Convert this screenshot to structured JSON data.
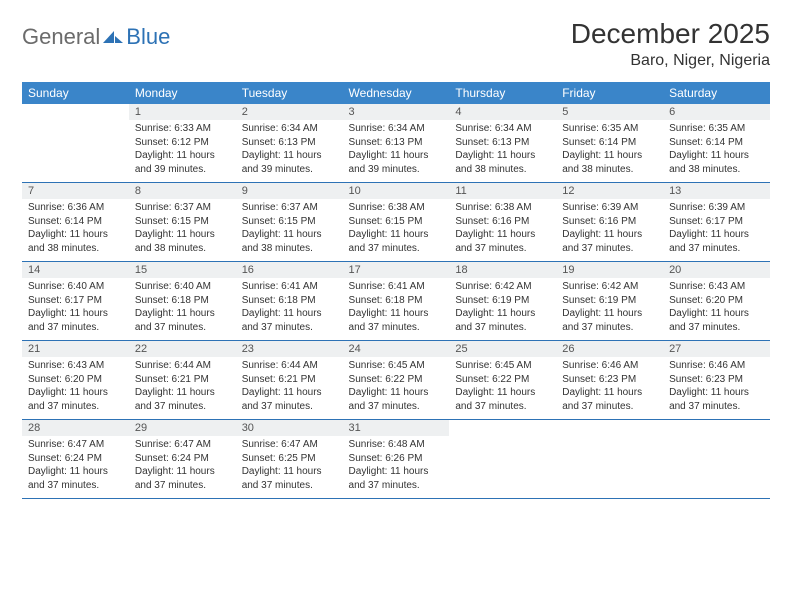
{
  "logo": {
    "general": "General",
    "blue": "Blue"
  },
  "title": "December 2025",
  "location": "Baro, Niger, Nigeria",
  "colors": {
    "header_bg": "#3a85c9",
    "header_text": "#ffffff",
    "daynum_bg": "#eef0f1",
    "border": "#2d72b5",
    "text": "#333333",
    "logo_gray": "#6b6b6b",
    "logo_blue": "#2d72b5"
  },
  "days_of_week": [
    "Sunday",
    "Monday",
    "Tuesday",
    "Wednesday",
    "Thursday",
    "Friday",
    "Saturday"
  ],
  "weeks": [
    [
      {
        "n": "",
        "sr": "",
        "ss": "",
        "dl": ""
      },
      {
        "n": "1",
        "sr": "Sunrise: 6:33 AM",
        "ss": "Sunset: 6:12 PM",
        "dl": "Daylight: 11 hours and 39 minutes."
      },
      {
        "n": "2",
        "sr": "Sunrise: 6:34 AM",
        "ss": "Sunset: 6:13 PM",
        "dl": "Daylight: 11 hours and 39 minutes."
      },
      {
        "n": "3",
        "sr": "Sunrise: 6:34 AM",
        "ss": "Sunset: 6:13 PM",
        "dl": "Daylight: 11 hours and 39 minutes."
      },
      {
        "n": "4",
        "sr": "Sunrise: 6:34 AM",
        "ss": "Sunset: 6:13 PM",
        "dl": "Daylight: 11 hours and 38 minutes."
      },
      {
        "n": "5",
        "sr": "Sunrise: 6:35 AM",
        "ss": "Sunset: 6:14 PM",
        "dl": "Daylight: 11 hours and 38 minutes."
      },
      {
        "n": "6",
        "sr": "Sunrise: 6:35 AM",
        "ss": "Sunset: 6:14 PM",
        "dl": "Daylight: 11 hours and 38 minutes."
      }
    ],
    [
      {
        "n": "7",
        "sr": "Sunrise: 6:36 AM",
        "ss": "Sunset: 6:14 PM",
        "dl": "Daylight: 11 hours and 38 minutes."
      },
      {
        "n": "8",
        "sr": "Sunrise: 6:37 AM",
        "ss": "Sunset: 6:15 PM",
        "dl": "Daylight: 11 hours and 38 minutes."
      },
      {
        "n": "9",
        "sr": "Sunrise: 6:37 AM",
        "ss": "Sunset: 6:15 PM",
        "dl": "Daylight: 11 hours and 38 minutes."
      },
      {
        "n": "10",
        "sr": "Sunrise: 6:38 AM",
        "ss": "Sunset: 6:15 PM",
        "dl": "Daylight: 11 hours and 37 minutes."
      },
      {
        "n": "11",
        "sr": "Sunrise: 6:38 AM",
        "ss": "Sunset: 6:16 PM",
        "dl": "Daylight: 11 hours and 37 minutes."
      },
      {
        "n": "12",
        "sr": "Sunrise: 6:39 AM",
        "ss": "Sunset: 6:16 PM",
        "dl": "Daylight: 11 hours and 37 minutes."
      },
      {
        "n": "13",
        "sr": "Sunrise: 6:39 AM",
        "ss": "Sunset: 6:17 PM",
        "dl": "Daylight: 11 hours and 37 minutes."
      }
    ],
    [
      {
        "n": "14",
        "sr": "Sunrise: 6:40 AM",
        "ss": "Sunset: 6:17 PM",
        "dl": "Daylight: 11 hours and 37 minutes."
      },
      {
        "n": "15",
        "sr": "Sunrise: 6:40 AM",
        "ss": "Sunset: 6:18 PM",
        "dl": "Daylight: 11 hours and 37 minutes."
      },
      {
        "n": "16",
        "sr": "Sunrise: 6:41 AM",
        "ss": "Sunset: 6:18 PM",
        "dl": "Daylight: 11 hours and 37 minutes."
      },
      {
        "n": "17",
        "sr": "Sunrise: 6:41 AM",
        "ss": "Sunset: 6:18 PM",
        "dl": "Daylight: 11 hours and 37 minutes."
      },
      {
        "n": "18",
        "sr": "Sunrise: 6:42 AM",
        "ss": "Sunset: 6:19 PM",
        "dl": "Daylight: 11 hours and 37 minutes."
      },
      {
        "n": "19",
        "sr": "Sunrise: 6:42 AM",
        "ss": "Sunset: 6:19 PM",
        "dl": "Daylight: 11 hours and 37 minutes."
      },
      {
        "n": "20",
        "sr": "Sunrise: 6:43 AM",
        "ss": "Sunset: 6:20 PM",
        "dl": "Daylight: 11 hours and 37 minutes."
      }
    ],
    [
      {
        "n": "21",
        "sr": "Sunrise: 6:43 AM",
        "ss": "Sunset: 6:20 PM",
        "dl": "Daylight: 11 hours and 37 minutes."
      },
      {
        "n": "22",
        "sr": "Sunrise: 6:44 AM",
        "ss": "Sunset: 6:21 PM",
        "dl": "Daylight: 11 hours and 37 minutes."
      },
      {
        "n": "23",
        "sr": "Sunrise: 6:44 AM",
        "ss": "Sunset: 6:21 PM",
        "dl": "Daylight: 11 hours and 37 minutes."
      },
      {
        "n": "24",
        "sr": "Sunrise: 6:45 AM",
        "ss": "Sunset: 6:22 PM",
        "dl": "Daylight: 11 hours and 37 minutes."
      },
      {
        "n": "25",
        "sr": "Sunrise: 6:45 AM",
        "ss": "Sunset: 6:22 PM",
        "dl": "Daylight: 11 hours and 37 minutes."
      },
      {
        "n": "26",
        "sr": "Sunrise: 6:46 AM",
        "ss": "Sunset: 6:23 PM",
        "dl": "Daylight: 11 hours and 37 minutes."
      },
      {
        "n": "27",
        "sr": "Sunrise: 6:46 AM",
        "ss": "Sunset: 6:23 PM",
        "dl": "Daylight: 11 hours and 37 minutes."
      }
    ],
    [
      {
        "n": "28",
        "sr": "Sunrise: 6:47 AM",
        "ss": "Sunset: 6:24 PM",
        "dl": "Daylight: 11 hours and 37 minutes."
      },
      {
        "n": "29",
        "sr": "Sunrise: 6:47 AM",
        "ss": "Sunset: 6:24 PM",
        "dl": "Daylight: 11 hours and 37 minutes."
      },
      {
        "n": "30",
        "sr": "Sunrise: 6:47 AM",
        "ss": "Sunset: 6:25 PM",
        "dl": "Daylight: 11 hours and 37 minutes."
      },
      {
        "n": "31",
        "sr": "Sunrise: 6:48 AM",
        "ss": "Sunset: 6:26 PM",
        "dl": "Daylight: 11 hours and 37 minutes."
      },
      {
        "n": "",
        "sr": "",
        "ss": "",
        "dl": ""
      },
      {
        "n": "",
        "sr": "",
        "ss": "",
        "dl": ""
      },
      {
        "n": "",
        "sr": "",
        "ss": "",
        "dl": ""
      }
    ]
  ]
}
